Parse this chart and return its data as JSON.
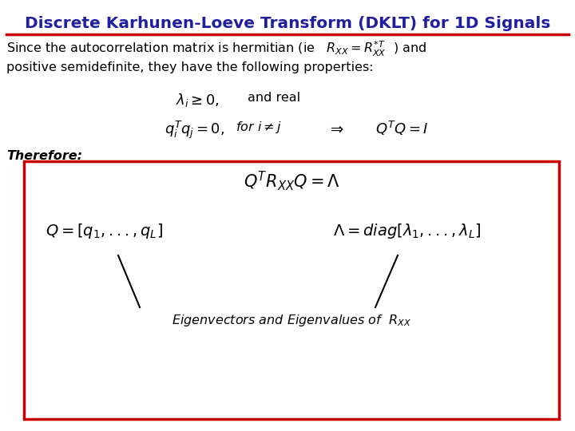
{
  "title": "Discrete Karhunen-Loeve Transform (DKLT) for 1D Signals",
  "title_color": "#1F1FA0",
  "title_fontsize": 14.5,
  "background_color": "#FFFFFF",
  "line_color": "#CC0000",
  "box_color": "#CC0000",
  "text_color": "#000000",
  "body_text_1": "Since the autocorrelation matrix is hermitian (ie   $R_{XX} = R_{XX}^{*T}$  ) and",
  "body_text_2": "positive semidefinite, they have the following properties:",
  "prop1": "$\\lambda_i \\geq 0,$",
  "prop1b": "and real",
  "prop2": "$q_i^T q_j = 0,$",
  "prop2b": "for $i \\neq j$",
  "prop2c": "$\\Rightarrow$",
  "prop2d": "$Q^T Q = I$",
  "therefore": "Therefore:",
  "box_eq1": "$Q^T R_{XX} Q = \\Lambda$",
  "box_eq2a": "$Q = \\left[q_1,...,q_L\\right]$",
  "box_eq2b": "$\\Lambda = diag\\left[\\lambda_1,...,\\lambda_L\\right]$",
  "box_caption": "Eigenvectors and Eigenvalues of  $R_{XX}$"
}
